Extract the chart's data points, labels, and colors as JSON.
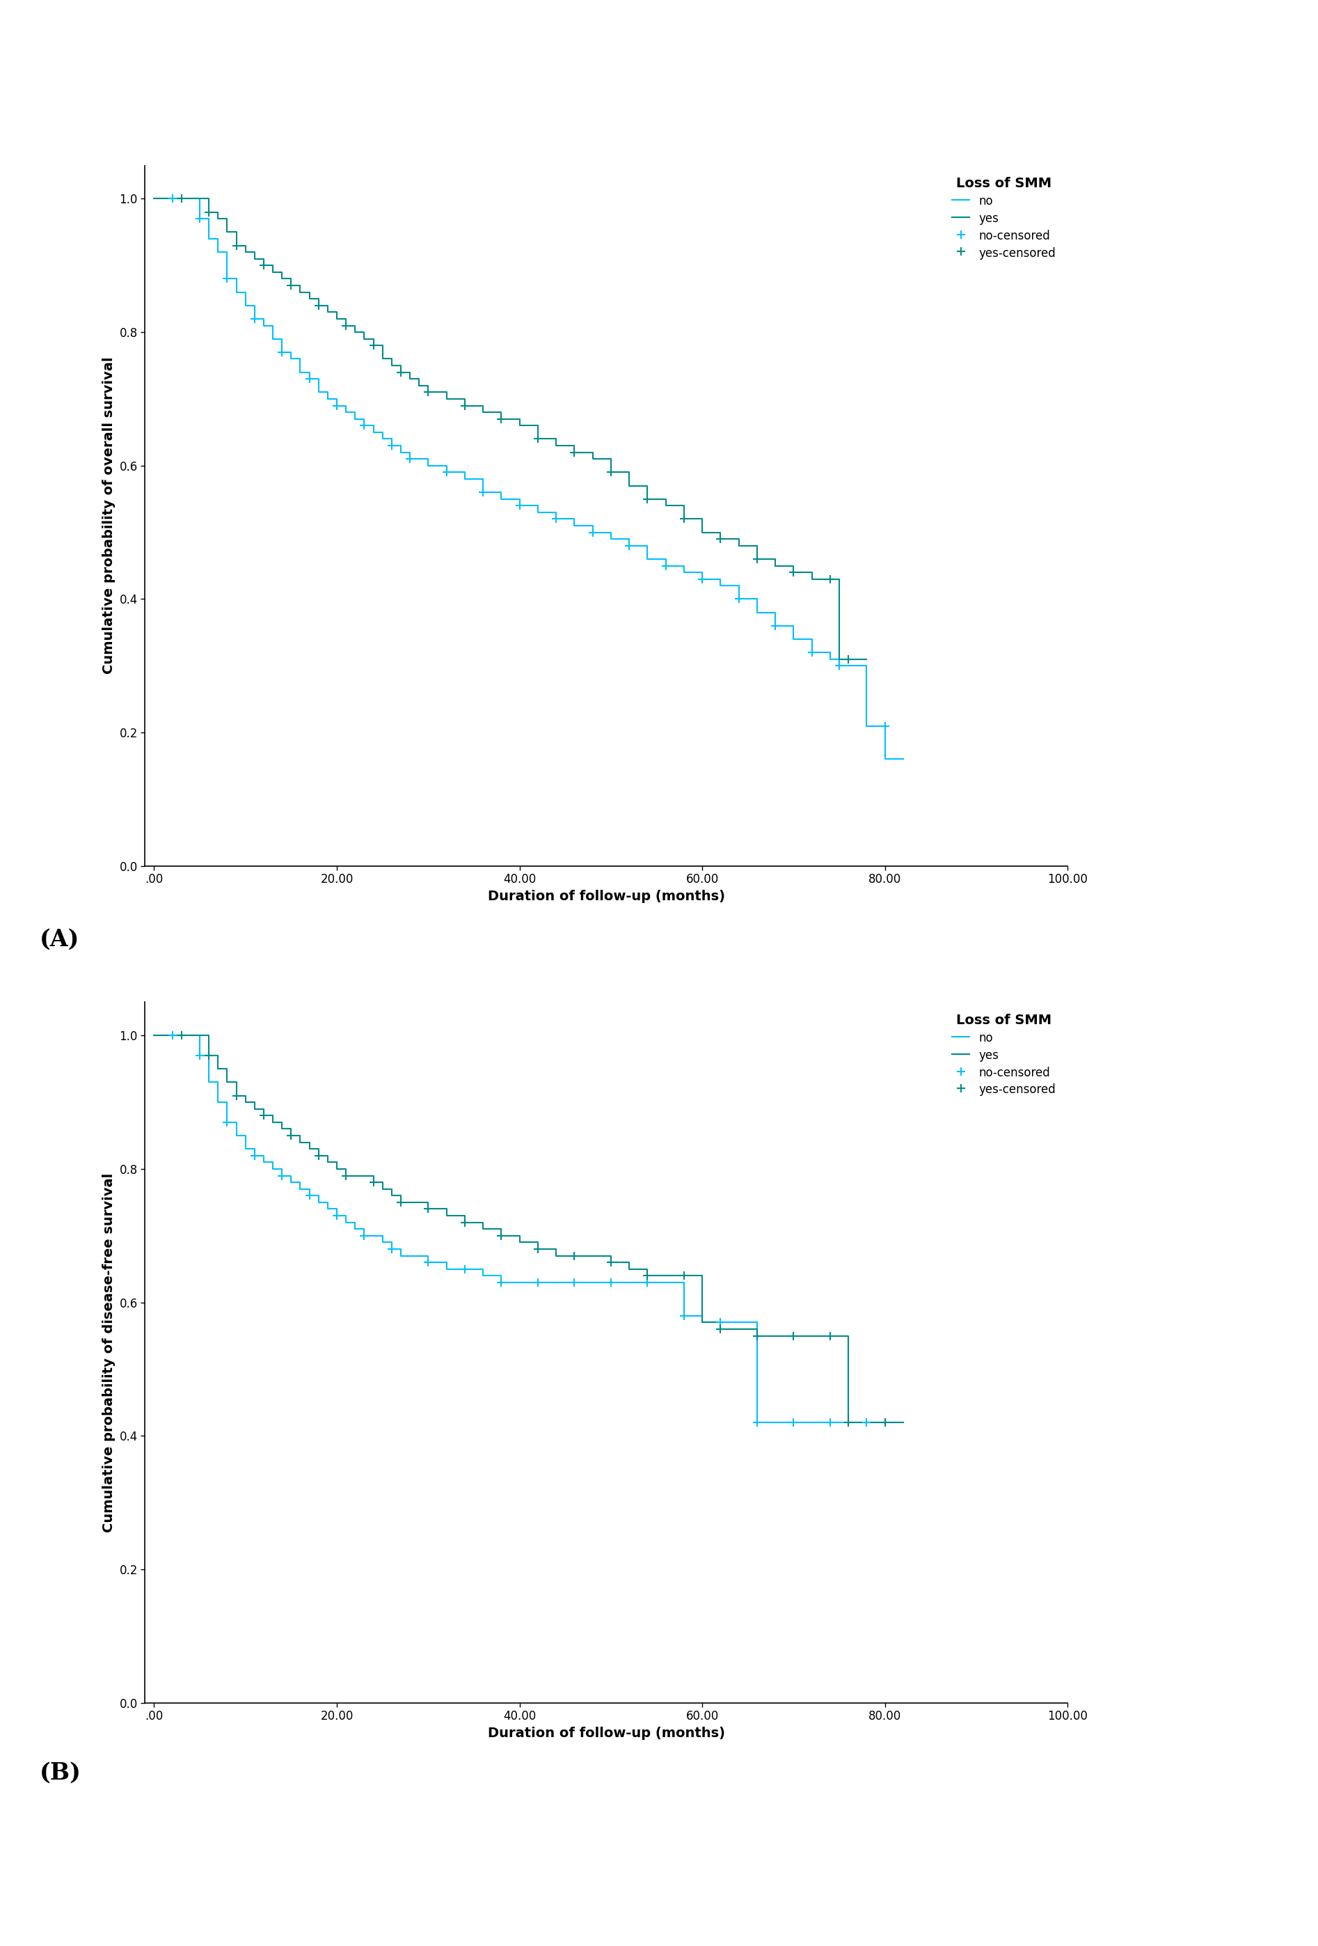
{
  "fig_width": 18.94,
  "fig_height": 27.95,
  "background_color": "#ffffff",
  "panel_A": {
    "ylabel": "Cumulative probability of overall survival",
    "xlabel": "Duration of follow-up (months)",
    "legend_title": "Loss of SMM",
    "xlim": [
      -1,
      100
    ],
    "ylim": [
      0.0,
      1.05
    ],
    "xticks": [
      0,
      20,
      40,
      60,
      80,
      100
    ],
    "xtick_labels": [
      ".00",
      "20.00",
      "40.00",
      "60.00",
      "80.00",
      "100.00"
    ],
    "yticks": [
      0.0,
      0.2,
      0.4,
      0.6,
      0.8,
      1.0
    ],
    "color_no": "#00BFFF",
    "color_yes": "#008B8B",
    "no_times": [
      0,
      2,
      3,
      4,
      5,
      6,
      7,
      8,
      9,
      10,
      11,
      12,
      13,
      14,
      15,
      16,
      17,
      18,
      19,
      20,
      21,
      22,
      23,
      24,
      25,
      26,
      27,
      28,
      30,
      32,
      34,
      36,
      38,
      40,
      42,
      44,
      46,
      48,
      50,
      52,
      54,
      56,
      58,
      60,
      62,
      64,
      66,
      68,
      70,
      72,
      74,
      75,
      76,
      78,
      80,
      82
    ],
    "no_surv": [
      1.0,
      1.0,
      1.0,
      1.0,
      0.97,
      0.94,
      0.92,
      0.88,
      0.86,
      0.84,
      0.82,
      0.81,
      0.79,
      0.77,
      0.76,
      0.74,
      0.73,
      0.71,
      0.7,
      0.69,
      0.68,
      0.67,
      0.66,
      0.65,
      0.64,
      0.63,
      0.62,
      0.61,
      0.6,
      0.59,
      0.58,
      0.56,
      0.55,
      0.54,
      0.53,
      0.52,
      0.51,
      0.5,
      0.49,
      0.48,
      0.46,
      0.45,
      0.44,
      0.43,
      0.42,
      0.4,
      0.38,
      0.36,
      0.34,
      0.32,
      0.31,
      0.3,
      0.3,
      0.21,
      0.16,
      0.16
    ],
    "no_censored_times": [
      2,
      5,
      8,
      11,
      14,
      17,
      20,
      23,
      26,
      28,
      32,
      36,
      40,
      44,
      48,
      52,
      56,
      60,
      64,
      68,
      72,
      75,
      80
    ],
    "no_censored_surv": [
      1.0,
      0.97,
      0.88,
      0.82,
      0.77,
      0.73,
      0.69,
      0.66,
      0.63,
      0.61,
      0.59,
      0.56,
      0.54,
      0.52,
      0.5,
      0.48,
      0.45,
      0.43,
      0.4,
      0.36,
      0.32,
      0.3,
      0.21
    ],
    "yes_times": [
      0,
      2,
      3,
      4,
      5,
      6,
      7,
      8,
      9,
      10,
      11,
      12,
      13,
      14,
      15,
      16,
      17,
      18,
      19,
      20,
      21,
      22,
      23,
      24,
      25,
      26,
      27,
      28,
      29,
      30,
      32,
      34,
      36,
      38,
      40,
      42,
      44,
      46,
      48,
      50,
      52,
      54,
      56,
      58,
      60,
      62,
      64,
      66,
      68,
      70,
      72,
      74,
      75,
      76,
      78
    ],
    "yes_surv": [
      1.0,
      1.0,
      1.0,
      1.0,
      1.0,
      0.98,
      0.97,
      0.95,
      0.93,
      0.92,
      0.91,
      0.9,
      0.89,
      0.88,
      0.87,
      0.86,
      0.85,
      0.84,
      0.83,
      0.82,
      0.81,
      0.8,
      0.79,
      0.78,
      0.76,
      0.75,
      0.74,
      0.73,
      0.72,
      0.71,
      0.7,
      0.69,
      0.68,
      0.67,
      0.66,
      0.64,
      0.63,
      0.62,
      0.61,
      0.59,
      0.57,
      0.55,
      0.54,
      0.52,
      0.5,
      0.49,
      0.48,
      0.46,
      0.45,
      0.44,
      0.43,
      0.43,
      0.31,
      0.31,
      0.31
    ],
    "yes_censored_times": [
      3,
      6,
      9,
      12,
      15,
      18,
      21,
      24,
      27,
      30,
      34,
      38,
      42,
      46,
      50,
      54,
      58,
      62,
      66,
      70,
      74,
      76
    ],
    "yes_censored_surv": [
      1.0,
      0.98,
      0.93,
      0.9,
      0.87,
      0.84,
      0.81,
      0.78,
      0.74,
      0.71,
      0.69,
      0.67,
      0.64,
      0.62,
      0.59,
      0.55,
      0.52,
      0.49,
      0.46,
      0.44,
      0.43,
      0.31
    ]
  },
  "panel_B": {
    "ylabel": "Cumulative probability of disease-free survival",
    "xlabel": "Duration of follow-up (months)",
    "legend_title": "Loss of SMM",
    "xlim": [
      -1,
      100
    ],
    "ylim": [
      0.0,
      1.05
    ],
    "xticks": [
      0,
      20,
      40,
      60,
      80,
      100
    ],
    "xtick_labels": [
      ".00",
      "20.00",
      "40.00",
      "60.00",
      "80.00",
      "100.00"
    ],
    "yticks": [
      0.0,
      0.2,
      0.4,
      0.6,
      0.8,
      1.0
    ],
    "color_no": "#00BFFF",
    "color_yes": "#008B8B",
    "no_times": [
      0,
      2,
      3,
      4,
      5,
      6,
      7,
      8,
      9,
      10,
      11,
      12,
      13,
      14,
      15,
      16,
      17,
      18,
      19,
      20,
      21,
      22,
      23,
      24,
      25,
      26,
      27,
      28,
      30,
      32,
      34,
      36,
      38,
      40,
      42,
      44,
      46,
      48,
      50,
      52,
      54,
      56,
      58,
      60,
      62,
      64,
      66,
      68,
      70,
      72,
      74,
      76,
      78,
      80,
      82
    ],
    "no_surv": [
      1.0,
      1.0,
      1.0,
      1.0,
      0.97,
      0.93,
      0.9,
      0.87,
      0.85,
      0.83,
      0.82,
      0.81,
      0.8,
      0.79,
      0.78,
      0.77,
      0.76,
      0.75,
      0.74,
      0.73,
      0.72,
      0.71,
      0.7,
      0.7,
      0.69,
      0.68,
      0.67,
      0.67,
      0.66,
      0.65,
      0.65,
      0.64,
      0.63,
      0.63,
      0.63,
      0.63,
      0.63,
      0.63,
      0.63,
      0.63,
      0.63,
      0.63,
      0.58,
      0.57,
      0.57,
      0.57,
      0.42,
      0.42,
      0.42,
      0.42,
      0.42,
      0.42,
      0.42,
      0.42,
      0.42
    ],
    "no_censored_times": [
      2,
      5,
      8,
      11,
      14,
      17,
      20,
      23,
      26,
      30,
      34,
      38,
      42,
      46,
      50,
      54,
      58,
      62,
      66,
      70,
      74,
      78
    ],
    "no_censored_surv": [
      1.0,
      0.97,
      0.87,
      0.82,
      0.79,
      0.76,
      0.73,
      0.7,
      0.68,
      0.66,
      0.65,
      0.63,
      0.63,
      0.63,
      0.63,
      0.63,
      0.58,
      0.57,
      0.42,
      0.42,
      0.42,
      0.42
    ],
    "yes_times": [
      0,
      2,
      3,
      4,
      5,
      6,
      7,
      8,
      9,
      10,
      11,
      12,
      13,
      14,
      15,
      16,
      17,
      18,
      19,
      20,
      21,
      22,
      23,
      24,
      25,
      26,
      27,
      28,
      30,
      32,
      34,
      36,
      38,
      40,
      42,
      44,
      46,
      48,
      50,
      52,
      54,
      56,
      58,
      60,
      62,
      64,
      66,
      68,
      70,
      72,
      74,
      76,
      78,
      80,
      82
    ],
    "yes_surv": [
      1.0,
      1.0,
      1.0,
      1.0,
      1.0,
      0.97,
      0.95,
      0.93,
      0.91,
      0.9,
      0.89,
      0.88,
      0.87,
      0.86,
      0.85,
      0.84,
      0.83,
      0.82,
      0.81,
      0.8,
      0.79,
      0.79,
      0.79,
      0.78,
      0.77,
      0.76,
      0.75,
      0.75,
      0.74,
      0.73,
      0.72,
      0.71,
      0.7,
      0.69,
      0.68,
      0.67,
      0.67,
      0.67,
      0.66,
      0.65,
      0.64,
      0.64,
      0.64,
      0.57,
      0.56,
      0.56,
      0.55,
      0.55,
      0.55,
      0.55,
      0.55,
      0.42,
      0.42,
      0.42,
      0.42
    ],
    "yes_censored_times": [
      3,
      6,
      9,
      12,
      15,
      18,
      21,
      24,
      27,
      30,
      34,
      38,
      42,
      46,
      50,
      54,
      58,
      62,
      66,
      70,
      74,
      76,
      80
    ],
    "yes_censored_surv": [
      1.0,
      0.97,
      0.91,
      0.88,
      0.85,
      0.82,
      0.79,
      0.78,
      0.75,
      0.74,
      0.72,
      0.7,
      0.68,
      0.67,
      0.66,
      0.64,
      0.64,
      0.56,
      0.55,
      0.55,
      0.55,
      0.42,
      0.42
    ]
  },
  "label_A": "(A)",
  "label_B": "(B)",
  "label_fontsize": 24,
  "axis_label_fontsize": 14,
  "tick_fontsize": 12,
  "legend_title_fontsize": 14,
  "legend_fontsize": 12
}
